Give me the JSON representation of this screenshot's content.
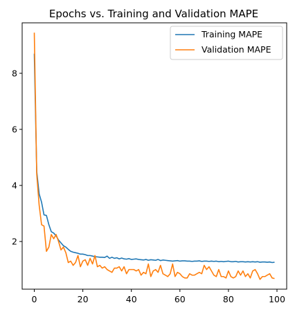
{
  "chart_data": {
    "type": "line",
    "title": "Epochs vs. Training and Validation MAPE",
    "xlabel": "",
    "ylabel": "",
    "xlim": [
      -5,
      104
    ],
    "ylim": [
      0.3,
      9.8
    ],
    "xticks": [
      0,
      20,
      40,
      60,
      80,
      100
    ],
    "yticks": [
      2,
      4,
      6,
      8
    ],
    "grid": false,
    "legend": "top-right",
    "series": [
      {
        "name": "Training MAPE",
        "color": "#1f77b4",
        "x": [
          0,
          1,
          2,
          3,
          4,
          5,
          6,
          7,
          8,
          9,
          10,
          11,
          12,
          13,
          14,
          15,
          16,
          17,
          18,
          19,
          20,
          21,
          22,
          23,
          24,
          25,
          26,
          27,
          28,
          29,
          30,
          31,
          32,
          33,
          34,
          35,
          36,
          37,
          38,
          39,
          40,
          41,
          42,
          43,
          44,
          45,
          46,
          47,
          48,
          49,
          50,
          51,
          52,
          53,
          54,
          55,
          56,
          57,
          58,
          59,
          60,
          61,
          62,
          63,
          64,
          65,
          66,
          67,
          68,
          69,
          70,
          71,
          72,
          73,
          74,
          75,
          76,
          77,
          78,
          79,
          80,
          81,
          82,
          83,
          84,
          85,
          86,
          87,
          88,
          89,
          90,
          91,
          92,
          93,
          94,
          95,
          96,
          97,
          98,
          99
        ],
        "values": [
          8.7,
          4.5,
          3.7,
          3.4,
          2.95,
          2.93,
          2.6,
          2.35,
          2.3,
          2.2,
          2.05,
          1.95,
          1.85,
          1.8,
          1.72,
          1.65,
          1.62,
          1.6,
          1.58,
          1.55,
          1.55,
          1.53,
          1.5,
          1.5,
          1.48,
          1.46,
          1.45,
          1.44,
          1.44,
          1.43,
          1.48,
          1.4,
          1.44,
          1.4,
          1.42,
          1.38,
          1.41,
          1.38,
          1.37,
          1.39,
          1.36,
          1.37,
          1.38,
          1.36,
          1.35,
          1.34,
          1.36,
          1.33,
          1.35,
          1.34,
          1.33,
          1.36,
          1.32,
          1.34,
          1.33,
          1.32,
          1.31,
          1.3,
          1.31,
          1.32,
          1.3,
          1.31,
          1.31,
          1.3,
          1.3,
          1.29,
          1.3,
          1.3,
          1.31,
          1.29,
          1.3,
          1.3,
          1.29,
          1.3,
          1.29,
          1.3,
          1.28,
          1.29,
          1.28,
          1.29,
          1.3,
          1.28,
          1.28,
          1.29,
          1.27,
          1.28,
          1.28,
          1.27,
          1.28,
          1.27,
          1.28,
          1.27,
          1.28,
          1.26,
          1.27,
          1.27,
          1.26,
          1.27,
          1.25,
          1.26
        ]
      },
      {
        "name": "Validation MAPE",
        "color": "#ff7f0e",
        "x": [
          0,
          1,
          2,
          3,
          4,
          5,
          6,
          7,
          8,
          9,
          10,
          11,
          12,
          13,
          14,
          15,
          16,
          17,
          18,
          19,
          20,
          21,
          22,
          23,
          24,
          25,
          26,
          27,
          28,
          29,
          30,
          31,
          32,
          33,
          34,
          35,
          36,
          37,
          38,
          39,
          40,
          41,
          42,
          43,
          44,
          45,
          46,
          47,
          48,
          49,
          50,
          51,
          52,
          53,
          54,
          55,
          56,
          57,
          58,
          59,
          60,
          61,
          62,
          63,
          64,
          65,
          66,
          67,
          68,
          69,
          70,
          71,
          72,
          73,
          74,
          75,
          76,
          77,
          78,
          79,
          80,
          81,
          82,
          83,
          84,
          85,
          86,
          87,
          88,
          89,
          90,
          91,
          92,
          93,
          94,
          95,
          96,
          97,
          98,
          99
        ],
        "values": [
          9.45,
          4.4,
          3.3,
          2.6,
          2.55,
          1.65,
          1.8,
          2.25,
          2.1,
          2.25,
          2.0,
          1.7,
          1.8,
          1.6,
          1.25,
          1.3,
          1.15,
          1.25,
          1.5,
          1.1,
          1.3,
          1.35,
          1.15,
          1.4,
          1.2,
          1.5,
          1.1,
          1.15,
          1.05,
          1.1,
          1.0,
          0.95,
          0.9,
          1.05,
          1.05,
          1.1,
          0.95,
          1.1,
          0.85,
          1.0,
          1.0,
          1.0,
          0.95,
          1.0,
          0.8,
          0.9,
          0.85,
          1.2,
          0.75,
          0.95,
          1.0,
          0.9,
          1.15,
          0.85,
          0.8,
          0.75,
          0.85,
          1.2,
          0.75,
          0.9,
          0.85,
          0.75,
          0.7,
          0.7,
          0.85,
          0.8,
          0.8,
          0.85,
          0.9,
          0.85,
          1.15,
          1.0,
          1.1,
          0.95,
          0.8,
          0.75,
          1.0,
          0.75,
          0.75,
          0.7,
          0.95,
          0.75,
          0.7,
          0.75,
          0.95,
          0.8,
          0.95,
          0.75,
          0.85,
          0.7,
          0.95,
          1.0,
          0.85,
          0.65,
          0.75,
          0.75,
          0.8,
          0.85,
          0.7,
          0.68
        ]
      }
    ]
  }
}
